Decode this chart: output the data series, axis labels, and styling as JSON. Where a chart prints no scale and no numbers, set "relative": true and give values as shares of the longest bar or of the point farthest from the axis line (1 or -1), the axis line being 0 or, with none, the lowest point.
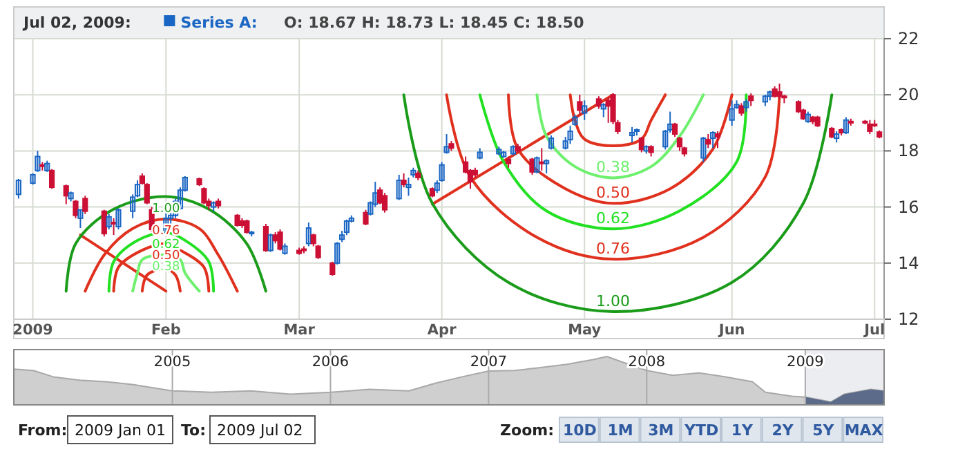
{
  "chart_data": [
    {
      "type": "candlestick",
      "legend": "top",
      "grid": true,
      "ylim": [
        12,
        22
      ],
      "yticks": [
        12,
        14,
        16,
        18,
        20,
        22
      ],
      "xlim": [
        "2009-01-01",
        "2009-07-03"
      ],
      "xticks": [
        {
          "value": "2009-01-05",
          "label": "2009"
        },
        {
          "value": "2009-02-02",
          "label": "Feb"
        },
        {
          "value": "2009-03-02",
          "label": "Mar"
        },
        {
          "value": "2009-04-01",
          "label": "Apr"
        },
        {
          "value": "2009-05-01",
          "label": "May"
        },
        {
          "value": "2009-06-01",
          "label": "Jun"
        },
        {
          "value": "2009-07-01",
          "label": "Jul"
        }
      ],
      "annotations": [
        "Jul 02, 2009:",
        "O: 18.67  H: 18.73  L: 18.45  C: 18.50",
        {
          "text": "0.38",
          "x": "2009-05-07",
          "y": 17.04
        },
        {
          "text": "0.50",
          "x": "2009-05-07",
          "y": 16.13
        },
        {
          "text": "0.62",
          "x": "2009-05-07",
          "y": 15.22
        },
        {
          "text": "0.76",
          "x": "2009-05-07",
          "y": 14.14
        },
        {
          "text": "1.00",
          "x": "2009-05-07",
          "y": 12.27
        },
        {
          "text": "1.00",
          "x": "2009-02-02",
          "y": 16.37
        },
        {
          "text": "0.76",
          "x": "2009-02-02",
          "y": 15.57
        },
        {
          "text": "0.62",
          "x": "2009-02-02",
          "y": 15.09
        },
        {
          "text": "0.50",
          "x": "2009-02-02",
          "y": 14.69
        },
        {
          "text": "0.38",
          "x": "2009-02-02",
          "y": 14.29
        }
      ],
      "series": [
        {
          "name": "Series A:",
          "color": "#1a66c4",
          "colors": [
            "#1a66c4",
            "#1a66c4",
            "#1a66c4",
            "#cc1035",
            "#1a66c4",
            "#cc1035",
            "#cc1035",
            "#1a66c4",
            "#cc1035",
            "#1a66c4",
            "#cc1035",
            "#cc1035",
            "#1a66c4",
            "#cc1035",
            "#1a66c4",
            "#1a66c4",
            "#1a66c4",
            "#cc1035",
            "#cc1035",
            "#cc1035",
            "#1a66c4",
            "#1a66c4",
            "#1a66c4",
            "#1a66c4",
            "#1a66c4",
            "#cc1035",
            "#cc1035",
            "#cc1035",
            "#1a66c4",
            "#cc1035",
            "#cc1035",
            "#cc1035",
            "#cc1035",
            "#1a66c4",
            "#cc1035",
            "#1a66c4",
            "#cc1035",
            "#cc1035",
            "#1a66c4",
            "#cc1035",
            "#cc1035",
            "#1a66c4",
            "#cc1035",
            "#cc1035",
            "#cc1035",
            "#1a66c4",
            "#1a66c4",
            "#1a66c4",
            "#1a66c4",
            "#cc1035",
            "#1a66c4",
            "#1a66c4",
            "#cc1035",
            "#cc1035",
            "#1a66c4",
            "#cc1035",
            "#1a66c4",
            "#1a66c4",
            "#cc1035",
            "#cc1035",
            "#1a66c4",
            "#1a66c4",
            "#1a66c4",
            "#cc1035",
            "#cc1035",
            "#cc1035",
            "#cc1035",
            "#1a66c4",
            "#1a66c4",
            "#1a66c4",
            "#cc1035",
            "#1a66c4",
            "#cc1035",
            "#cc1035",
            "#1a66c4",
            "#cc1035",
            "#1a66c4",
            "#1a66c4",
            "#1a66c4",
            "#1a66c4",
            "#1a66c4",
            "#cc1035",
            "#1a66c4",
            "#cc1035",
            "#1a66c4",
            "#cc1035",
            "#cc1035",
            "#cc1035",
            "#1a66c4",
            "#1a66c4",
            "#cc1035",
            "#1a66c4",
            "#cc1035",
            "#1a66c4",
            "#1a66c4",
            "#cc1035",
            "#cc1035",
            "#cc1035",
            "#1a66c4",
            "#cc1035",
            "#1a66c4",
            "#cc1035",
            "#1a66c4",
            "#1a66c4",
            "#cc1035",
            "#1a66c4",
            "#cc1035",
            "#1a66c4",
            "#1a66c4",
            "#cc1035",
            "#cc1035",
            "#cc1035",
            "#cc1035",
            "#cc1035",
            "#1a66c4",
            "#cc1035",
            "#cc1035",
            "#cc1035",
            "#1a66c4",
            "#cc1035",
            "#1a66c4",
            "#cc1035",
            "#cc1035",
            "#cc1035",
            "#cc1035",
            "#cc1035"
          ],
          "x": [
            "2009-01-02",
            "2009-01-05",
            "2009-01-06",
            "2009-01-07",
            "2009-01-08",
            "2009-01-09",
            "2009-01-12",
            "2009-01-13",
            "2009-01-14",
            "2009-01-15",
            "2009-01-16",
            "2009-01-20",
            "2009-01-21",
            "2009-01-22",
            "2009-01-23",
            "2009-01-26",
            "2009-01-27",
            "2009-01-28",
            "2009-01-29",
            "2009-01-30",
            "2009-02-02",
            "2009-02-03",
            "2009-02-04",
            "2009-02-05",
            "2009-02-06",
            "2009-02-09",
            "2009-02-10",
            "2009-02-11",
            "2009-02-12",
            "2009-02-13",
            "2009-02-17",
            "2009-02-18",
            "2009-02-19",
            "2009-02-20",
            "2009-02-23",
            "2009-02-24",
            "2009-02-25",
            "2009-02-26",
            "2009-02-27",
            "2009-03-02",
            "2009-03-03",
            "2009-03-04",
            "2009-03-05",
            "2009-03-06",
            "2009-03-09",
            "2009-03-10",
            "2009-03-11",
            "2009-03-12",
            "2009-03-13",
            "2009-03-16",
            "2009-03-17",
            "2009-03-18",
            "2009-03-19",
            "2009-03-20",
            "2009-03-23",
            "2009-03-24",
            "2009-03-25",
            "2009-03-26",
            "2009-03-27",
            "2009-03-30",
            "2009-03-31",
            "2009-04-01",
            "2009-04-02",
            "2009-04-03",
            "2009-04-06",
            "2009-04-07",
            "2009-04-08",
            "2009-04-09",
            "2009-04-13",
            "2009-04-14",
            "2009-04-15",
            "2009-04-16",
            "2009-04-17",
            "2009-04-20",
            "2009-04-21",
            "2009-04-22",
            "2009-04-23",
            "2009-04-24",
            "2009-04-27",
            "2009-04-28",
            "2009-04-29",
            "2009-04-30",
            "2009-05-01",
            "2009-05-04",
            "2009-05-05",
            "2009-05-06",
            "2009-05-07",
            "2009-05-08",
            "2009-05-11",
            "2009-05-12",
            "2009-05-13",
            "2009-05-14",
            "2009-05-15",
            "2009-05-18",
            "2009-05-19",
            "2009-05-20",
            "2009-05-21",
            "2009-05-22",
            "2009-05-26",
            "2009-05-27",
            "2009-05-28",
            "2009-05-29",
            "2009-06-01",
            "2009-06-02",
            "2009-06-03",
            "2009-06-04",
            "2009-06-05",
            "2009-06-08",
            "2009-06-09",
            "2009-06-10",
            "2009-06-11",
            "2009-06-12",
            "2009-06-15",
            "2009-06-16",
            "2009-06-17",
            "2009-06-18",
            "2009-06-19",
            "2009-06-22",
            "2009-06-23",
            "2009-06-24",
            "2009-06-25",
            "2009-06-26",
            "2009-06-29",
            "2009-06-30",
            "2009-07-01",
            "2009-07-02"
          ],
          "ohlc": [
            [
              16.45,
              17.0,
              16.3,
              16.95
            ],
            [
              16.85,
              17.2,
              16.8,
              17.15
            ],
            [
              17.3,
              18.0,
              17.25,
              17.8
            ],
            [
              17.5,
              17.6,
              17.3,
              17.45
            ],
            [
              17.3,
              17.65,
              17.25,
              17.55
            ],
            [
              17.3,
              17.35,
              16.65,
              16.7
            ],
            [
              16.75,
              16.8,
              16.1,
              16.4
            ],
            [
              16.3,
              16.55,
              16.2,
              16.5
            ],
            [
              16.2,
              16.25,
              15.6,
              15.7
            ],
            [
              15.6,
              15.9,
              15.25,
              15.9
            ],
            [
              16.3,
              16.4,
              15.75,
              15.85
            ],
            [
              15.85,
              15.9,
              14.95,
              15.05
            ],
            [
              15.3,
              15.75,
              15.2,
              15.65
            ],
            [
              15.45,
              15.6,
              15.0,
              15.4
            ],
            [
              15.3,
              15.95,
              15.2,
              15.9
            ],
            [
              15.85,
              16.45,
              15.6,
              16.35
            ],
            [
              16.4,
              16.95,
              16.35,
              16.8
            ],
            [
              17.1,
              17.2,
              16.8,
              16.85
            ],
            [
              16.8,
              16.85,
              16.1,
              16.15
            ],
            [
              15.9,
              16.0,
              15.1,
              15.2
            ],
            [
              15.1,
              15.8,
              15.0,
              15.6
            ],
            [
              15.6,
              15.8,
              15.4,
              15.7
            ],
            [
              15.7,
              16.3,
              15.6,
              16.2
            ],
            [
              15.95,
              16.7,
              15.9,
              16.6
            ],
            [
              16.6,
              17.1,
              16.55,
              17.05
            ],
            [
              17.0,
              17.05,
              16.75,
              16.8
            ],
            [
              16.65,
              16.7,
              16.1,
              16.15
            ],
            [
              16.2,
              16.3,
              15.9,
              16.05
            ],
            [
              16.0,
              16.2,
              15.85,
              16.15
            ],
            [
              16.2,
              16.3,
              15.95,
              16.05
            ],
            [
              15.7,
              15.75,
              15.3,
              15.35
            ],
            [
              15.5,
              15.6,
              15.25,
              15.35
            ],
            [
              15.5,
              15.55,
              15.05,
              15.1
            ],
            [
              15.05,
              15.15,
              14.95,
              15.1
            ],
            [
              15.3,
              15.4,
              14.4,
              14.45
            ],
            [
              14.45,
              15.05,
              14.4,
              15.0
            ],
            [
              15.0,
              15.1,
              14.7,
              14.8
            ],
            [
              15.1,
              15.2,
              14.45,
              14.5
            ],
            [
              14.35,
              14.7,
              14.3,
              14.6
            ],
            [
              14.45,
              14.55,
              14.3,
              14.35
            ],
            [
              14.5,
              14.6,
              14.35,
              14.45
            ],
            [
              14.7,
              15.45,
              14.6,
              15.25
            ],
            [
              15.0,
              15.05,
              14.6,
              14.7
            ],
            [
              14.6,
              14.65,
              14.15,
              14.2
            ],
            [
              14.0,
              14.05,
              13.55,
              13.6
            ],
            [
              14.0,
              14.75,
              13.95,
              14.7
            ],
            [
              14.85,
              15.15,
              14.75,
              15.0
            ],
            [
              15.1,
              15.55,
              15.0,
              15.5
            ],
            [
              15.5,
              15.7,
              15.45,
              15.6
            ],
            [
              15.8,
              15.9,
              15.35,
              15.4
            ],
            [
              15.75,
              16.2,
              15.7,
              16.15
            ],
            [
              16.1,
              16.9,
              16.0,
              16.5
            ],
            [
              16.6,
              16.7,
              16.1,
              16.15
            ],
            [
              16.4,
              16.5,
              15.8,
              15.9
            ],
            [
              16.3,
              17.15,
              16.25,
              16.95
            ],
            [
              16.95,
              17.2,
              16.7,
              16.8
            ],
            [
              16.7,
              17.05,
              16.4,
              16.8
            ],
            [
              17.15,
              17.4,
              17.05,
              17.3
            ],
            [
              17.2,
              17.3,
              16.95,
              17.05
            ],
            [
              16.65,
              16.7,
              16.35,
              16.4
            ],
            [
              16.6,
              16.95,
              16.5,
              16.85
            ],
            [
              16.95,
              17.6,
              16.9,
              17.5
            ],
            [
              17.95,
              18.6,
              17.9,
              18.15
            ],
            [
              18.25,
              18.35,
              18.0,
              18.1
            ],
            [
              17.6,
              17.8,
              17.2,
              17.25
            ],
            [
              17.3,
              17.35,
              16.65,
              16.9
            ],
            [
              17.3,
              17.4,
              17.05,
              17.15
            ],
            [
              17.75,
              18.1,
              17.7,
              17.95
            ],
            [
              17.9,
              18.15,
              17.85,
              18.05
            ],
            [
              17.8,
              18.0,
              17.75,
              17.95
            ],
            [
              17.7,
              17.8,
              17.4,
              17.55
            ],
            [
              17.9,
              18.2,
              17.85,
              18.15
            ],
            [
              18.15,
              18.25,
              17.95,
              18.0
            ],
            [
              17.7,
              17.75,
              17.15,
              17.25
            ],
            [
              17.25,
              17.8,
              17.2,
              17.75
            ],
            [
              17.6,
              18.1,
              17.3,
              17.55
            ],
            [
              17.55,
              17.7,
              17.2,
              17.65
            ],
            [
              18.1,
              18.55,
              18.05,
              18.45
            ],
            [
              18.1,
              18.5,
              18.05,
              18.35
            ],
            [
              18.4,
              18.9,
              18.25,
              18.7
            ],
            [
              18.95,
              19.3,
              18.9,
              19.2
            ],
            [
              19.75,
              20.0,
              19.3,
              19.45
            ],
            [
              19.35,
              19.8,
              19.1,
              19.6
            ],
            [
              19.85,
              19.95,
              19.5,
              19.6
            ],
            [
              19.5,
              19.7,
              19.2,
              19.65
            ],
            [
              19.8,
              19.9,
              19.0,
              19.6
            ],
            [
              20.0,
              20.05,
              18.95,
              19.05
            ],
            [
              19.0,
              19.1,
              18.6,
              18.7
            ],
            [
              18.55,
              18.85,
              18.3,
              18.65
            ],
            [
              18.7,
              18.8,
              18.55,
              18.75
            ],
            [
              18.45,
              18.5,
              17.95,
              18.05
            ],
            [
              18.0,
              18.2,
              17.9,
              18.15
            ],
            [
              18.15,
              18.2,
              17.8,
              17.95
            ],
            [
              18.15,
              18.75,
              18.05,
              18.7
            ],
            [
              18.75,
              19.4,
              18.65,
              18.95
            ],
            [
              18.95,
              19.0,
              18.5,
              18.6
            ],
            [
              18.45,
              18.5,
              18.0,
              18.15
            ],
            [
              18.1,
              18.15,
              17.8,
              17.9
            ],
            [
              17.75,
              18.5,
              17.6,
              18.45
            ],
            [
              18.4,
              18.6,
              18.1,
              18.25
            ],
            [
              18.45,
              18.7,
              18.1,
              18.65
            ],
            [
              18.6,
              18.7,
              18.1,
              18.5
            ],
            [
              19.1,
              19.8,
              18.9,
              19.5
            ],
            [
              19.55,
              19.8,
              19.5,
              19.65
            ],
            [
              19.6,
              19.7,
              19.25,
              19.35
            ],
            [
              19.55,
              19.85,
              19.4,
              19.75
            ],
            [
              19.95,
              20.05,
              19.6,
              19.8
            ],
            [
              19.75,
              20.0,
              19.6,
              19.95
            ],
            [
              19.95,
              20.15,
              19.8,
              20.1
            ],
            [
              20.2,
              20.3,
              19.9,
              19.95
            ],
            [
              20.1,
              20.4,
              19.85,
              19.95
            ],
            [
              19.95,
              20.0,
              19.7,
              19.9
            ],
            [
              19.75,
              19.8,
              19.35,
              19.4
            ],
            [
              19.45,
              19.5,
              19.1,
              19.15
            ],
            [
              19.05,
              19.4,
              19.0,
              19.3
            ],
            [
              19.2,
              19.25,
              18.95,
              19.05
            ],
            [
              19.2,
              19.25,
              18.85,
              18.9
            ],
            [
              18.8,
              18.85,
              18.45,
              18.5
            ],
            [
              18.45,
              18.7,
              18.3,
              18.6
            ],
            [
              18.75,
              18.8,
              18.55,
              18.65
            ],
            [
              18.65,
              19.2,
              18.6,
              19.1
            ],
            [
              19.05,
              19.15,
              18.9,
              19.0
            ],
            [
              19.05,
              19.1,
              18.95,
              19.0
            ],
            [
              18.95,
              19.1,
              18.6,
              18.7
            ],
            [
              18.95,
              19.1,
              18.85,
              18.9
            ],
            [
              18.67,
              18.73,
              18.45,
              18.5
            ]
          ]
        },
        {
          "type": "line",
          "color": "#e0301e",
          "x": [
            "2009-03-30",
            "2009-05-07"
          ],
          "values": [
            16.1,
            20.0
          ]
        },
        {
          "type": "line",
          "color": "#1a9c1a",
          "x": [
            "2009-03-24",
            "2009-03-30",
            "2009-04-15",
            "2009-05-07",
            "2009-06-01",
            "2009-06-16",
            "2009-06-22"
          ],
          "values": [
            20,
            16.13,
            13.31,
            12.27,
            13.31,
            16.13,
            20
          ]
        },
        {
          "type": "line",
          "color": "#e0301e",
          "x": [
            "2009-04-02",
            "2009-04-07",
            "2009-04-21",
            "2009-05-07",
            "2009-05-26",
            "2009-06-08",
            "2009-06-11"
          ],
          "values": [
            20,
            17.07,
            14.92,
            14.14,
            14.92,
            17.07,
            20
          ]
        },
        {
          "type": "line",
          "color": "#22e022",
          "x": [
            "2009-04-09",
            "2009-04-14",
            "2009-04-23",
            "2009-05-07",
            "2009-05-21",
            "2009-06-02",
            "2009-06-04"
          ],
          "values": [
            20,
            17.61,
            15.86,
            15.22,
            15.86,
            17.61,
            20
          ]
        },
        {
          "type": "line",
          "color": "#e0301e",
          "x": [
            "2009-04-15",
            "2009-04-17",
            "2009-04-27",
            "2009-05-07",
            "2009-05-19",
            "2009-05-28",
            "2009-06-01"
          ],
          "values": [
            20,
            18.07,
            16.65,
            16.13,
            16.65,
            18.07,
            20
          ]
        },
        {
          "type": "line",
          "color": "#6ef06e",
          "x": [
            "2009-04-21",
            "2009-04-23",
            "2009-04-29",
            "2009-05-07",
            "2009-05-15",
            "2009-05-21",
            "2009-05-26"
          ],
          "values": [
            20,
            18.52,
            17.44,
            17.04,
            17.44,
            18.52,
            20
          ]
        },
        {
          "type": "line",
          "color": "#e0301e",
          "x": [
            "2009-04-28",
            "2009-04-29",
            "2009-05-01",
            "2009-05-07",
            "2009-05-13",
            "2009-05-15",
            "2009-05-18"
          ],
          "values": [
            20,
            19.09,
            18.42,
            18.18,
            18.42,
            19.09,
            20
          ]
        },
        {
          "type": "line",
          "color": "#e0301e",
          "x": [
            "2009-01-15",
            "2009-02-02"
          ],
          "values": [
            15.0,
            13.0
          ]
        },
        {
          "type": "line",
          "color": "#1a9c1a",
          "x": [
            "2009-01-12",
            "2009-01-14",
            "2009-01-22",
            "2009-02-02",
            "2009-02-11",
            "2009-02-19",
            "2009-02-23"
          ],
          "values": [
            13,
            14.69,
            15.92,
            16.37,
            15.92,
            14.69,
            13
          ]
        },
        {
          "type": "line",
          "color": "#e0301e",
          "x": [
            "2009-01-16",
            "2009-01-20",
            "2009-01-26",
            "2009-02-02",
            "2009-02-09",
            "2009-02-13",
            "2009-02-17"
          ],
          "values": [
            13,
            14.29,
            15.23,
            15.57,
            15.23,
            14.29,
            13
          ]
        },
        {
          "type": "line",
          "color": "#22e022",
          "x": [
            "2009-01-21",
            "2009-01-22",
            "2009-01-27",
            "2009-02-02",
            "2009-02-06",
            "2009-02-11",
            "2009-02-12"
          ],
          "values": [
            13,
            14.05,
            14.81,
            15.09,
            14.81,
            14.05,
            13
          ]
        },
        {
          "type": "line",
          "color": "#e0301e",
          "x": [
            "2009-01-22",
            "2009-01-23",
            "2009-01-28",
            "2009-02-02",
            "2009-02-05",
            "2009-02-10",
            "2009-02-11"
          ],
          "values": [
            13,
            13.85,
            14.46,
            14.69,
            14.46,
            13.85,
            13
          ]
        },
        {
          "type": "line",
          "color": "#6ef06e",
          "x": [
            "2009-01-26",
            "2009-01-27",
            "2009-01-28",
            "2009-02-02",
            "2009-02-05",
            "2009-02-06",
            "2009-02-09"
          ],
          "values": [
            13,
            13.65,
            14.12,
            14.29,
            14.12,
            13.65,
            13
          ]
        },
        {
          "type": "line",
          "color": "#e0301e",
          "x": [
            "2009-01-28",
            "2009-01-29",
            "2009-02-02",
            "2009-02-04",
            "2009-02-05"
          ],
          "values": [
            13,
            13.57,
            13.8,
            13.57,
            13
          ]
        }
      ]
    },
    {
      "type": "area",
      "relative": true,
      "color": "#a8a8a8",
      "grid": "x",
      "xlim": [
        "2004-01-01",
        "2009-07-02"
      ],
      "xticks": [
        "2005",
        "2006",
        "2007",
        "2008",
        "2009"
      ],
      "bands": [
        {
          "axis": "x",
          "from": "2009-01-02",
          "to": "2009-07-02",
          "color": "#5c6b8a"
        }
      ],
      "x": [
        "2004-01-01",
        "2004-02-15",
        "2004-04-01",
        "2004-06-01",
        "2004-08-01",
        "2004-10-01",
        "2005-01-01",
        "2005-04-01",
        "2005-07-01",
        "2005-10-01",
        "2006-01-01",
        "2006-04-01",
        "2006-07-01",
        "2006-09-01",
        "2006-11-01",
        "2007-01-01",
        "2007-03-01",
        "2007-05-01",
        "2007-07-01",
        "2007-09-01",
        "2007-10-01",
        "2007-11-01",
        "2008-01-01",
        "2008-03-01",
        "2008-05-01",
        "2008-07-01",
        "2008-09-01",
        "2008-10-01",
        "2008-12-01",
        "2009-01-02",
        "2009-03-01",
        "2009-04-01",
        "2009-06-01",
        "2009-07-02"
      ],
      "values": [
        0.74,
        0.71,
        0.58,
        0.51,
        0.48,
        0.42,
        0.29,
        0.26,
        0.29,
        0.22,
        0.26,
        0.32,
        0.29,
        0.45,
        0.58,
        0.7,
        0.71,
        0.77,
        0.84,
        0.94,
        1.0,
        0.9,
        0.71,
        0.61,
        0.66,
        0.58,
        0.48,
        0.26,
        0.18,
        0.16,
        0.06,
        0.22,
        0.32,
        0.29
      ]
    },
    {
      "type": "other",
      "annotations": [
        "From:",
        "2009 Jan 01",
        "To:",
        "2009 Jul 02",
        "Zoom:",
        "10D",
        "1M",
        "3M",
        "YTD",
        "1Y",
        "2Y",
        "5Y",
        "MAX"
      ]
    }
  ]
}
